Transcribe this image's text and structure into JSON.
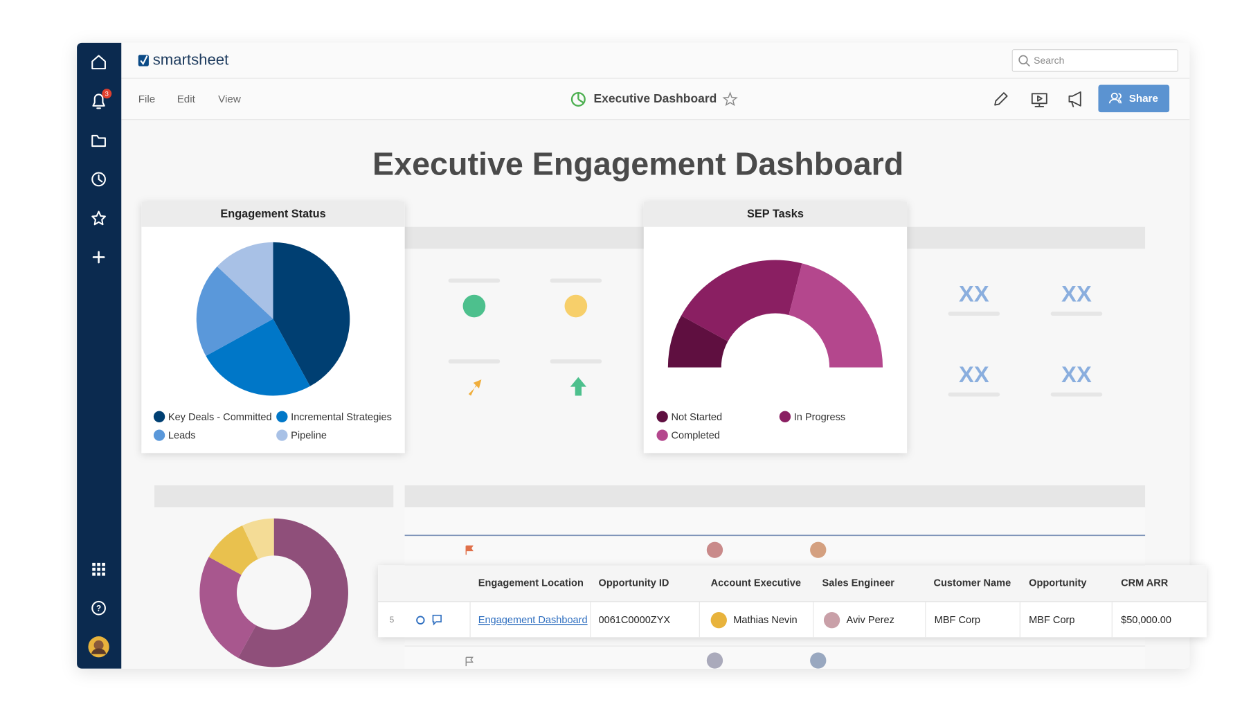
{
  "app": {
    "logo": "smartsheet",
    "search_placeholder": "Search",
    "notification_count": 3,
    "menu": [
      "File",
      "Edit",
      "View"
    ],
    "sheet_title": "Executive Dashboard",
    "share": "Share"
  },
  "dashboard": {
    "title": "Executive Engagement Dashboard",
    "metric_tiles": [
      "XX",
      "XX",
      "XX",
      "XX"
    ]
  },
  "chart_data": [
    {
      "type": "pie",
      "title": "Engagement Status",
      "categories": [
        "Key Deals - Committed",
        "Incremental Strategies",
        "Leads",
        "Pipeline"
      ],
      "values": [
        42,
        25,
        20,
        13
      ],
      "colors": [
        "#003f72",
        "#0077c8",
        "#5a98da",
        "#a8c1e6"
      ]
    },
    {
      "type": "half-donut",
      "title": "SEP Tasks",
      "categories": [
        "Not Started",
        "In Progress",
        "Completed"
      ],
      "values": [
        16,
        42,
        42
      ],
      "colors": [
        "#5f0f40",
        "#8a1f62",
        "#b4478d"
      ]
    },
    {
      "type": "donut",
      "values": [
        58,
        25,
        10,
        7
      ],
      "colors": [
        "#8f4f7a",
        "#a8578e",
        "#e9c14e",
        "#f4dc96"
      ]
    }
  ],
  "table": {
    "headers": [
      "Engagement Location",
      "Opportunity ID",
      "Account Executive",
      "Sales Engineer",
      "Customer Name",
      "Opportunity",
      "CRM ARR"
    ],
    "rows": [
      {
        "row_number": 5,
        "cells": [
          "Engagement Dashboard",
          "0061C0000ZYX",
          "Mathias Nevin",
          "Aviv Perez",
          "MBF Corp",
          "MBF Corp",
          "$50,000.00"
        ]
      }
    ]
  }
}
